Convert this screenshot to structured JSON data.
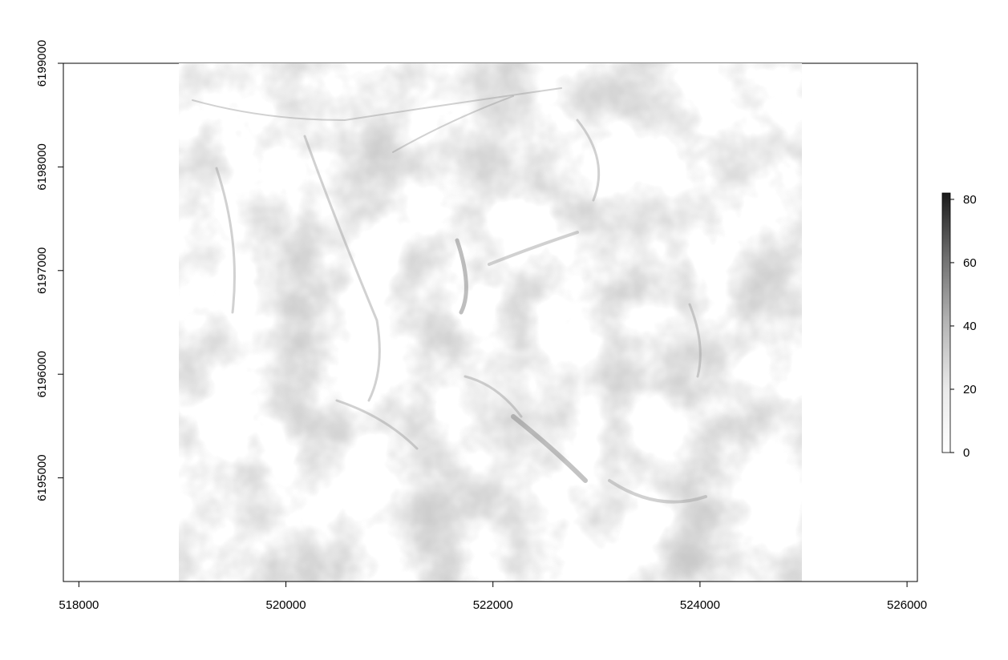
{
  "map": {
    "x_axis": {
      "range": [
        517850,
        526100
      ],
      "ticks": [
        518000,
        520000,
        522000,
        524000,
        526000
      ],
      "tick_labels": [
        "518000",
        "520000",
        "522000",
        "524000",
        "526000"
      ]
    },
    "y_axis": {
      "range": [
        6194000,
        6199000
      ],
      "ticks": [
        6195000,
        6196000,
        6197000,
        6198000,
        6199000
      ],
      "tick_labels": [
        "6195000",
        "6196000",
        "6197000",
        "6198000",
        "6199000"
      ]
    },
    "raster": {
      "type": "hillshade-like slope raster",
      "extent_x": [
        519000,
        525000
      ],
      "extent_y": [
        6194000,
        6199000
      ],
      "palette": "white-to-black greyscale"
    },
    "legend": {
      "placement": "right",
      "min": 0,
      "max": 82,
      "ticks": [
        0,
        20,
        40,
        60,
        80
      ],
      "tick_labels": [
        "0",
        "20",
        "40",
        "60",
        "80"
      ],
      "color_low": "#ffffff",
      "color_high": "#1a1a1a"
    }
  }
}
